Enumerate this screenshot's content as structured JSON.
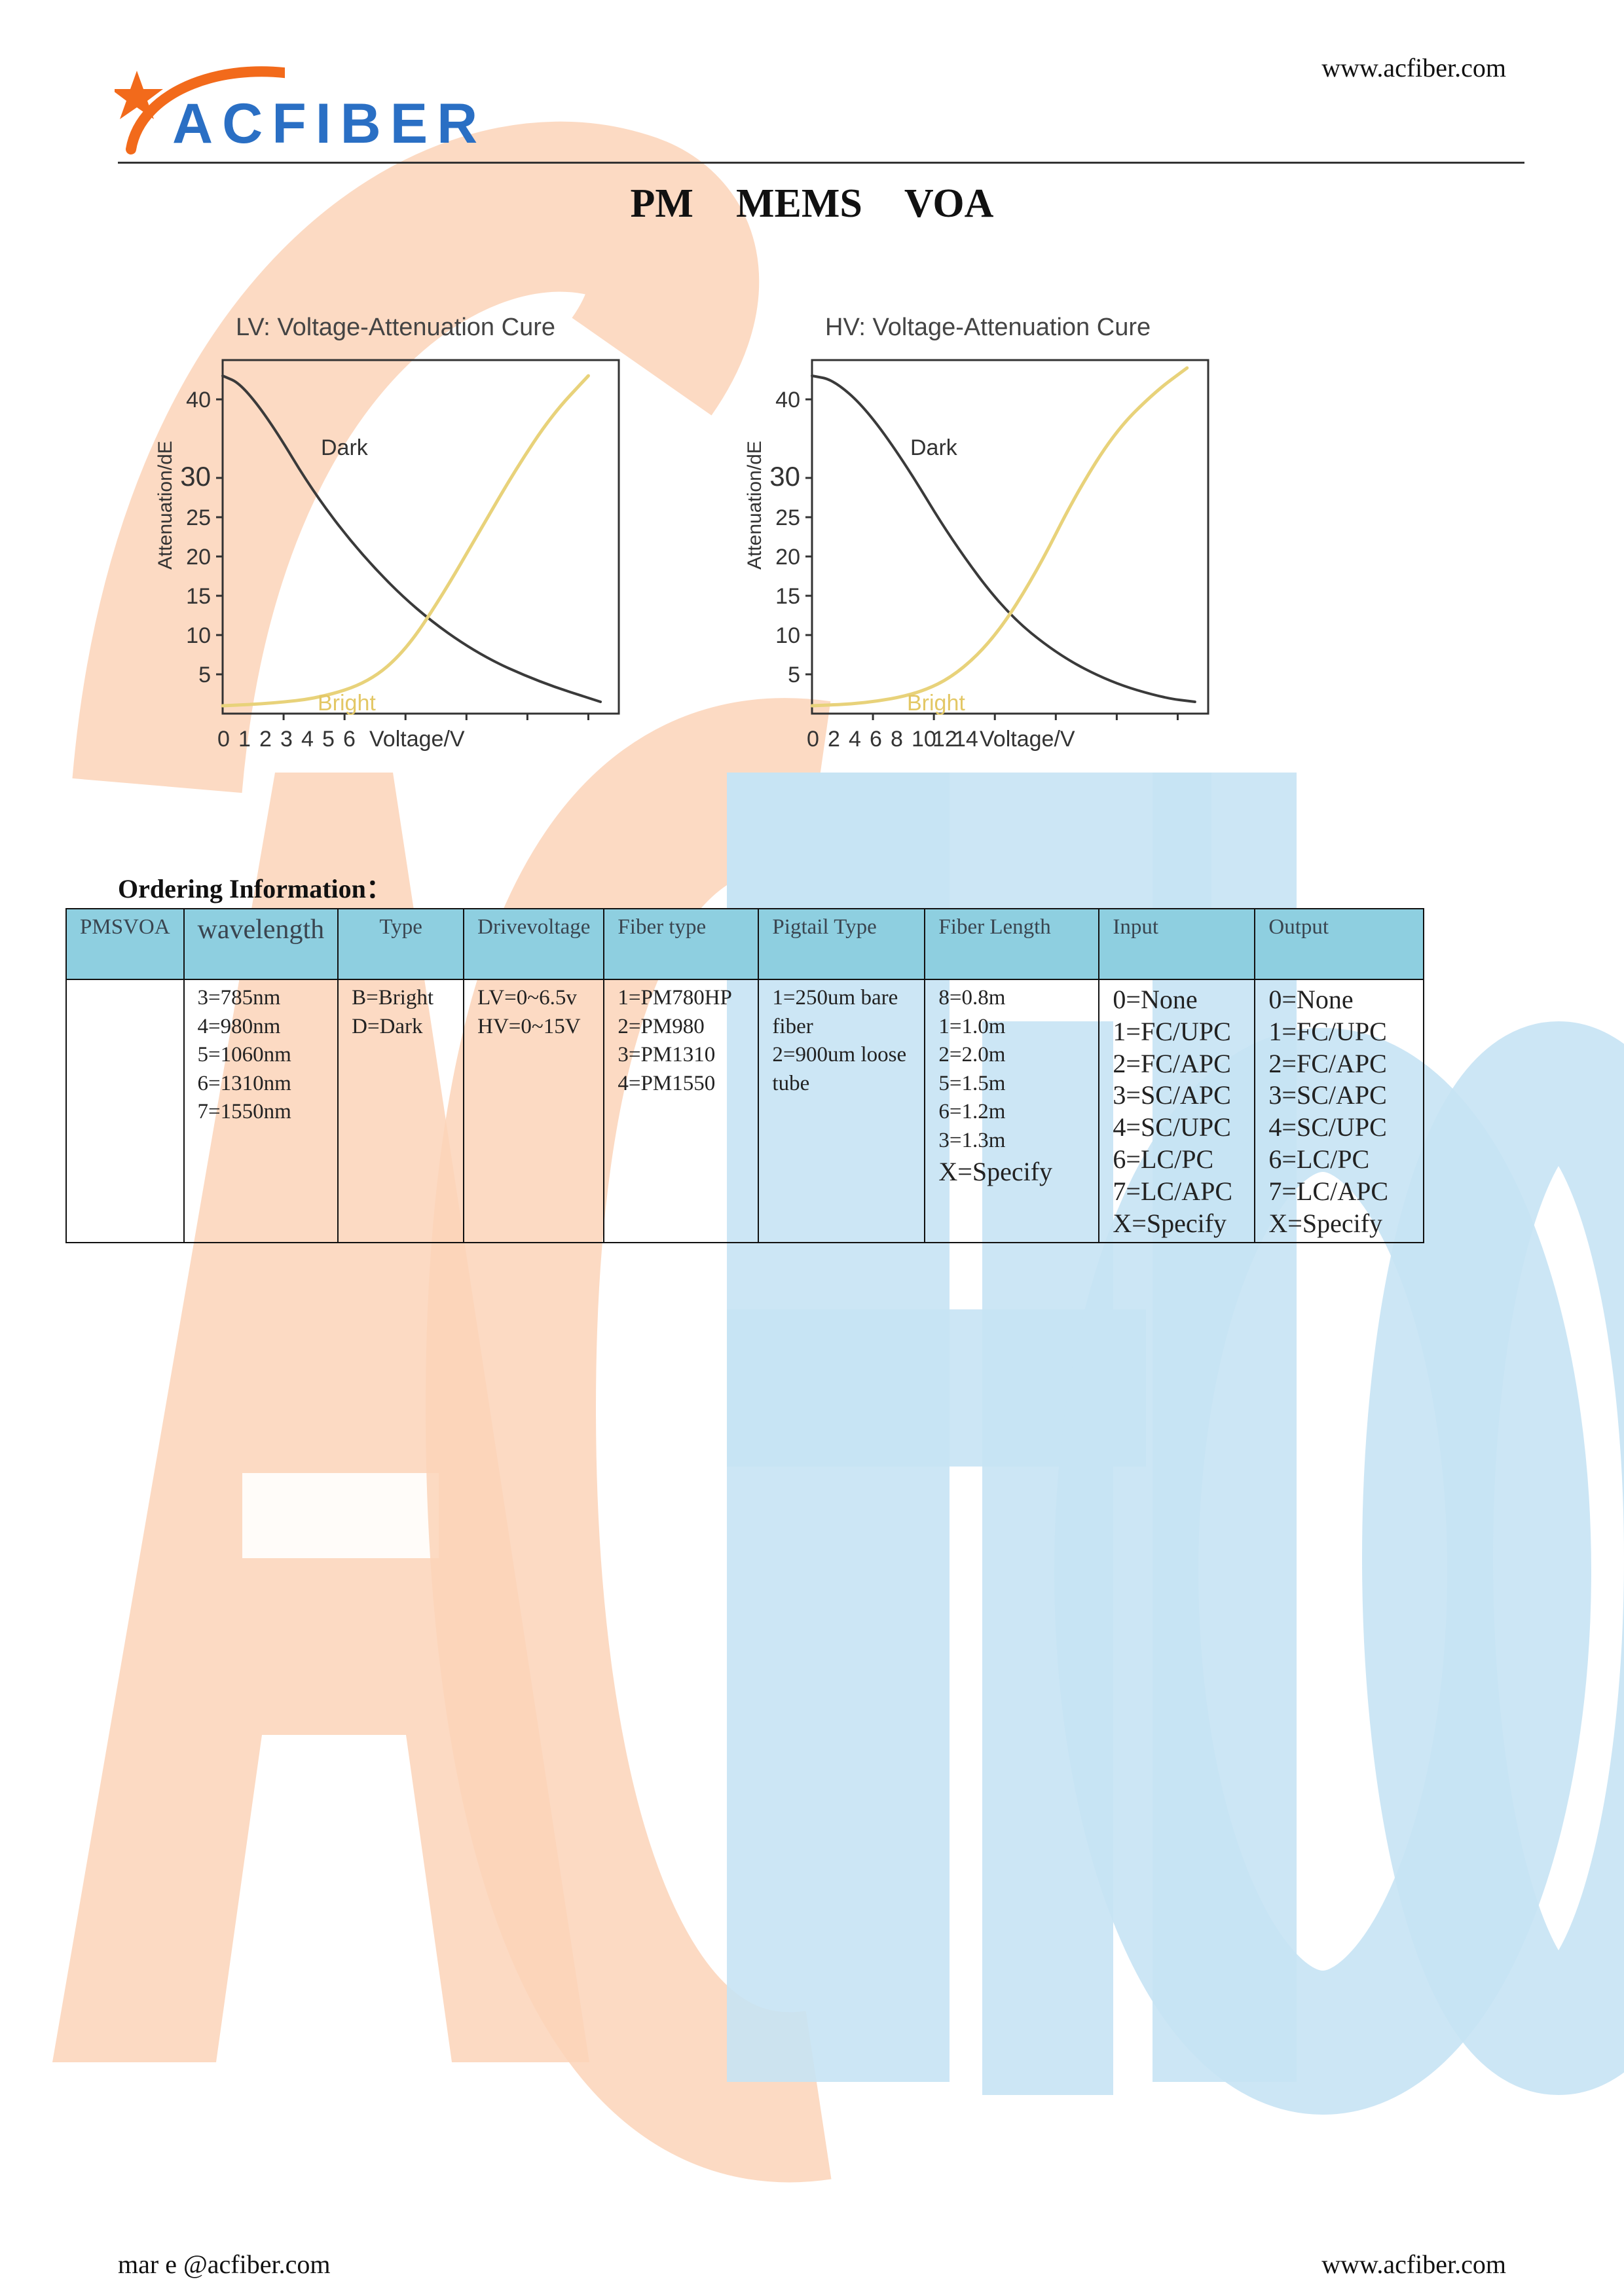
{
  "header": {
    "logo_text": "ACFIBER",
    "website": "www.acfiber.com"
  },
  "page_title": "PM    MEMS VOA",
  "charts_section": {
    "chart_data": [
      {
        "type": "line",
        "title": "LV: Voltage-Attenuation Cure",
        "xlabel": "Voltage/V",
        "ylabel": "Attenuation/dE",
        "x_ticks": [
          "0",
          "1",
          "2",
          "3",
          "4",
          "5",
          "6"
        ],
        "y_ticks": [
          "40",
          "30",
          "25",
          "20",
          "15",
          "10",
          "5"
        ],
        "xlim": [
          0,
          6.5
        ],
        "ylim": [
          0,
          45
        ],
        "grid": false,
        "series": [
          {
            "name": "Dark",
            "color": "#3a3a3a",
            "x": [
              0,
              0.3,
              0.8,
              1.5,
              2.3,
              3.2,
              4.2,
              5.2,
              6.2
            ],
            "y": [
              43,
              42,
              37,
              28,
              20,
              13,
              7.5,
              4,
              1.5
            ]
          },
          {
            "name": "Bright",
            "color": "#e8d27a",
            "x": [
              0,
              0.8,
              1.6,
              2.4,
              3.0,
              3.6,
              4.2,
              4.8,
              5.4,
              6.0
            ],
            "y": [
              1,
              1.3,
              2,
              4,
              8,
              15,
              23,
              31,
              38,
              43
            ]
          }
        ]
      },
      {
        "type": "line",
        "title": "HV: Voltage-Attenuation Cure",
        "xlabel": "Voltage/V",
        "ylabel": "Attenuation/dE",
        "x_ticks": [
          "0",
          "2",
          "4",
          "6",
          "8",
          "10",
          "12",
          "14"
        ],
        "y_ticks": [
          "40",
          "30",
          "25",
          "20",
          "15",
          "10",
          "5"
        ],
        "xlim": [
          0,
          15
        ],
        "ylim": [
          0,
          45
        ],
        "grid": false,
        "series": [
          {
            "name": "Dark",
            "color": "#3a3a3a",
            "x": [
              0,
              0.8,
              2,
              3.5,
              5.3,
              7.3,
              9.3,
              11.3,
              13.3,
              14.5
            ],
            "y": [
              43,
              42.5,
              39,
              32,
              22,
              13,
              7.5,
              4,
              2,
              1.5
            ]
          },
          {
            "name": "Bright",
            "color": "#e8d27a",
            "x": [
              0,
              2,
              4,
              5.5,
              7,
              8.5,
              10,
              11.5,
              13,
              14.2
            ],
            "y": [
              1,
              1.3,
              2.5,
              5,
              10,
              18,
              28,
              36,
              41,
              44
            ]
          }
        ]
      }
    ]
  },
  "ordering": {
    "title": "Ordering Information：",
    "headers": [
      "PMSVOA",
      "wavelength",
      "Type",
      "Drivevoltage",
      "Fiber type",
      "Pigtail Type",
      "Fiber Length",
      "Input",
      "Output"
    ],
    "columns": [
      [],
      [
        "3=785nm",
        "4=980nm",
        "5=1060nm",
        "6=1310nm",
        "7=1550nm"
      ],
      [
        "B=Bright",
        "D=Dark"
      ],
      [
        "LV=0~6.5v",
        "HV=0~15V"
      ],
      [
        "1=PM780HP",
        "2=PM980",
        "3=PM1310",
        "4=PM1550"
      ],
      [
        "1=250um bare fiber",
        "2=900um loose tube"
      ],
      [
        "8=0.8m",
        "1=1.0m",
        "2=2.0m",
        "5=1.5m",
        "6=1.2m",
        "3=1.3m",
        "X=Specify"
      ],
      [
        "0=None",
        "1=FC/UPC",
        "2=FC/APC",
        "3=SC/APC",
        "4=SC/UPC",
        "6=LC/PC",
        "7=LC/APC",
        "X=Specify"
      ],
      [
        "0=None",
        "1=FC/UPC",
        "2=FC/APC",
        "3=SC/APC",
        "4=SC/UPC",
        "6=LC/PC",
        "7=LC/APC",
        "X=Specify"
      ]
    ]
  },
  "footer": {
    "email": "mar  e @acfiber.com",
    "website": "www.acfiber.com"
  },
  "colors": {
    "brand_blue": "#2a6fc4",
    "brand_orange": "#f26a1b",
    "table_header_bg": "#8ecfe0",
    "watermark_orange": "#fbd3b8",
    "watermark_blue": "#c7e3f4"
  }
}
